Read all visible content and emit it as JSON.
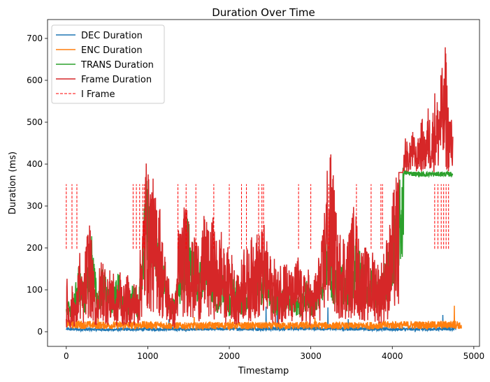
{
  "chart_data": {
    "type": "line",
    "title": "Duration Over Time",
    "xlabel": "Timestamp",
    "ylabel": "Duration (ms)",
    "xlim": [
      -230,
      5070
    ],
    "ylim": [
      -35,
      745
    ],
    "xticks": [
      0,
      1000,
      2000,
      3000,
      4000,
      5000
    ],
    "yticks": [
      0,
      100,
      200,
      300,
      400,
      500,
      600,
      700
    ],
    "grid": false,
    "legend_position": "top-left",
    "series": [
      {
        "name": "DEC Duration",
        "color": "#1f77b4",
        "base_points": [
          [
            0,
            6
          ],
          [
            500,
            5
          ],
          [
            1000,
            6
          ],
          [
            1500,
            6
          ],
          [
            2000,
            7
          ],
          [
            2500,
            7
          ],
          [
            3000,
            8
          ],
          [
            3500,
            7
          ],
          [
            4000,
            6
          ],
          [
            4500,
            6
          ],
          [
            4780,
            8
          ]
        ],
        "spikes": [
          [
            1260,
            30
          ],
          [
            2450,
            60
          ],
          [
            2590,
            75
          ],
          [
            3210,
            58
          ],
          [
            3460,
            30
          ],
          [
            4620,
            40
          ]
        ]
      },
      {
        "name": "ENC Duration",
        "color": "#ff7f0e",
        "base_points": [
          [
            0,
            18
          ],
          [
            500,
            15
          ],
          [
            1000,
            16
          ],
          [
            1500,
            14
          ],
          [
            2000,
            15
          ],
          [
            2500,
            14
          ],
          [
            3000,
            15
          ],
          [
            3500,
            14
          ],
          [
            4000,
            16
          ],
          [
            4500,
            16
          ],
          [
            4800,
            17
          ],
          [
            4850,
            12
          ]
        ],
        "spikes": [
          [
            120,
            40
          ],
          [
            390,
            42
          ],
          [
            880,
            45
          ],
          [
            1570,
            35
          ],
          [
            2010,
            30
          ],
          [
            3050,
            34
          ],
          [
            4760,
            62
          ]
        ]
      },
      {
        "name": "TRANS Duration",
        "color": "#2ca02c",
        "points": [
          [
            0,
            50
          ],
          [
            40,
            80
          ],
          [
            80,
            60
          ],
          [
            150,
            150
          ],
          [
            230,
            90
          ],
          [
            300,
            240
          ],
          [
            380,
            90
          ],
          [
            460,
            150
          ],
          [
            540,
            70
          ],
          [
            640,
            130
          ],
          [
            730,
            60
          ],
          [
            830,
            110
          ],
          [
            880,
            60
          ],
          [
            940,
            210
          ],
          [
            980,
            360
          ],
          [
            1040,
            290
          ],
          [
            1100,
            250
          ],
          [
            1180,
            160
          ],
          [
            1250,
            100
          ],
          [
            1320,
            70
          ],
          [
            1400,
            140
          ],
          [
            1480,
            260
          ],
          [
            1560,
            190
          ],
          [
            1620,
            140
          ],
          [
            1700,
            210
          ],
          [
            1780,
            160
          ],
          [
            1850,
            90
          ],
          [
            1920,
            130
          ],
          [
            2000,
            80
          ],
          [
            2060,
            120
          ],
          [
            2140,
            90
          ],
          [
            2220,
            100
          ],
          [
            2300,
            160
          ],
          [
            2370,
            130
          ],
          [
            2450,
            160
          ],
          [
            2520,
            100
          ],
          [
            2600,
            80
          ],
          [
            2700,
            110
          ],
          [
            2800,
            90
          ],
          [
            2880,
            70
          ],
          [
            2950,
            120
          ],
          [
            3020,
            80
          ],
          [
            3080,
            110
          ],
          [
            3140,
            150
          ],
          [
            3200,
            250
          ],
          [
            3260,
            140
          ],
          [
            3320,
            150
          ],
          [
            3380,
            170
          ],
          [
            3440,
            100
          ],
          [
            3500,
            140
          ],
          [
            3560,
            230
          ],
          [
            3620,
            160
          ],
          [
            3700,
            130
          ],
          [
            3760,
            150
          ],
          [
            3820,
            110
          ],
          [
            3880,
            130
          ],
          [
            3920,
            160
          ],
          [
            3960,
            190
          ],
          [
            4000,
            210
          ],
          [
            4040,
            280
          ],
          [
            4080,
            320
          ],
          [
            4140,
            380
          ],
          [
            4300,
            376
          ],
          [
            4500,
            376
          ],
          [
            4740,
            376
          ]
        ]
      },
      {
        "name": "Frame Duration",
        "color": "#d62728",
        "points": [
          [
            0,
            60
          ],
          [
            10,
            130
          ],
          [
            40,
            40
          ],
          [
            80,
            120
          ],
          [
            120,
            60
          ],
          [
            160,
            200
          ],
          [
            200,
            100
          ],
          [
            240,
            200
          ],
          [
            280,
            270
          ],
          [
            320,
            180
          ],
          [
            360,
            80
          ],
          [
            410,
            150
          ],
          [
            460,
            180
          ],
          [
            510,
            120
          ],
          [
            560,
            160
          ],
          [
            610,
            80
          ],
          [
            660,
            150
          ],
          [
            700,
            100
          ],
          [
            750,
            130
          ],
          [
            800,
            90
          ],
          [
            840,
            120
          ],
          [
            880,
            100
          ],
          [
            920,
            230
          ],
          [
            950,
            300
          ],
          [
            980,
            410
          ],
          [
            1010,
            350
          ],
          [
            1050,
            370
          ],
          [
            1090,
            300
          ],
          [
            1120,
            350
          ],
          [
            1180,
            220
          ],
          [
            1230,
            150
          ],
          [
            1280,
            110
          ],
          [
            1330,
            60
          ],
          [
            1380,
            250
          ],
          [
            1440,
            280
          ],
          [
            1500,
            300
          ],
          [
            1550,
            200
          ],
          [
            1600,
            230
          ],
          [
            1650,
            180
          ],
          [
            1700,
            290
          ],
          [
            1750,
            220
          ],
          [
            1800,
            260
          ],
          [
            1850,
            200
          ],
          [
            1900,
            240
          ],
          [
            1950,
            160
          ],
          [
            2000,
            210
          ],
          [
            2060,
            150
          ],
          [
            2120,
            120
          ],
          [
            2180,
            210
          ],
          [
            2240,
            180
          ],
          [
            2300,
            240
          ],
          [
            2360,
            220
          ],
          [
            2420,
            250
          ],
          [
            2480,
            180
          ],
          [
            2540,
            170
          ],
          [
            2600,
            140
          ],
          [
            2660,
            190
          ],
          [
            2720,
            150
          ],
          [
            2780,
            130
          ],
          [
            2840,
            180
          ],
          [
            2900,
            120
          ],
          [
            2960,
            150
          ],
          [
            3020,
            100
          ],
          [
            3080,
            160
          ],
          [
            3140,
            210
          ],
          [
            3200,
            390
          ],
          [
            3220,
            330
          ],
          [
            3250,
            440
          ],
          [
            3290,
            320
          ],
          [
            3340,
            200
          ],
          [
            3380,
            260
          ],
          [
            3430,
            200
          ],
          [
            3480,
            240
          ],
          [
            3540,
            300
          ],
          [
            3600,
            190
          ],
          [
            3660,
            200
          ],
          [
            3720,
            170
          ],
          [
            3780,
            190
          ],
          [
            3840,
            150
          ],
          [
            3880,
            170
          ],
          [
            3920,
            210
          ],
          [
            3960,
            230
          ],
          [
            4000,
            300
          ],
          [
            4040,
            350
          ],
          [
            4080,
            370
          ],
          [
            4120,
            350
          ],
          [
            4160,
            480
          ],
          [
            4200,
            430
          ],
          [
            4240,
            490
          ],
          [
            4300,
            440
          ],
          [
            4360,
            520
          ],
          [
            4400,
            460
          ],
          [
            4440,
            540
          ],
          [
            4480,
            500
          ],
          [
            4520,
            580
          ],
          [
            4560,
            560
          ],
          [
            4600,
            650
          ],
          [
            4630,
            600
          ],
          [
            4655,
            706
          ],
          [
            4680,
            560
          ],
          [
            4720,
            520
          ],
          [
            4745,
            480
          ]
        ]
      }
    ],
    "i_frame": {
      "name": "I Frame",
      "color": "red",
      "y_range": [
        198,
        352
      ],
      "x_positions": [
        0,
        70,
        130,
        820,
        860,
        900,
        940,
        960,
        1370,
        1470,
        1590,
        1810,
        2000,
        2150,
        2210,
        2360,
        2400,
        2420,
        2850,
        3000,
        3220,
        3560,
        3740,
        3860,
        3880,
        4520,
        4560,
        4600,
        4630,
        4660,
        4690
      ]
    }
  }
}
